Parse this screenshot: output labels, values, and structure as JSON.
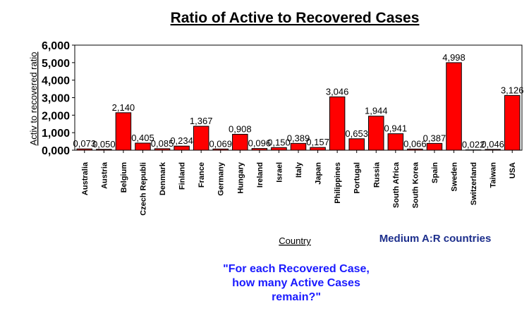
{
  "chart_data": {
    "type": "bar",
    "title": "Ratio of Active to Recovered Cases",
    "xlabel": "Country",
    "ylabel": "Activ to recovered ratio",
    "ylim": [
      0,
      6
    ],
    "yticks": [
      0,
      1,
      2,
      3,
      4,
      5,
      6
    ],
    "ytick_labels": [
      "0,000",
      "1,000",
      "2,000",
      "3,000",
      "4,000",
      "5,000",
      "6,000"
    ],
    "categories": [
      "Australia",
      "Austria",
      "Belgium",
      "Czech Republi",
      "Denmark",
      "Finland",
      "France",
      "Germany",
      "Hungary",
      "Ireland",
      "Israel",
      "Italy",
      "Japan",
      "Philippines",
      "Portugal",
      "Russia",
      "South Africa",
      "South Korea",
      "Spain",
      "Sweden",
      "Switzerland",
      "Taiwan",
      "USA"
    ],
    "values": [
      0.073,
      0.05,
      2.14,
      0.405,
      0.085,
      0.234,
      1.367,
      0.069,
      0.908,
      0.096,
      0.15,
      0.389,
      0.157,
      3.046,
      0.653,
      1.944,
      0.941,
      0.066,
      0.387,
      4.998,
      0.022,
      0.046,
      3.126
    ],
    "value_labels": [
      "0,073",
      "0,050",
      "2,140",
      "0,405",
      "0,085",
      "0,234",
      "1,367",
      "0,069",
      "0,908",
      "0,096",
      "0,150",
      "0,389",
      "0,157",
      "3,046",
      "0,653",
      "1,944",
      "0,941",
      "0,066",
      "0,387",
      "4,998",
      "0,022",
      "0,046",
      "3,126"
    ],
    "bar_color": "#ff0000",
    "grid": false,
    "legend": "none"
  },
  "annotations": {
    "note": "Medium A:R countries",
    "note_color": "#1c2e8c",
    "question_lines": [
      "\"For each Recovered Case,",
      "how many Active Cases",
      "remain?\""
    ],
    "question_color": "#1a1aff"
  }
}
